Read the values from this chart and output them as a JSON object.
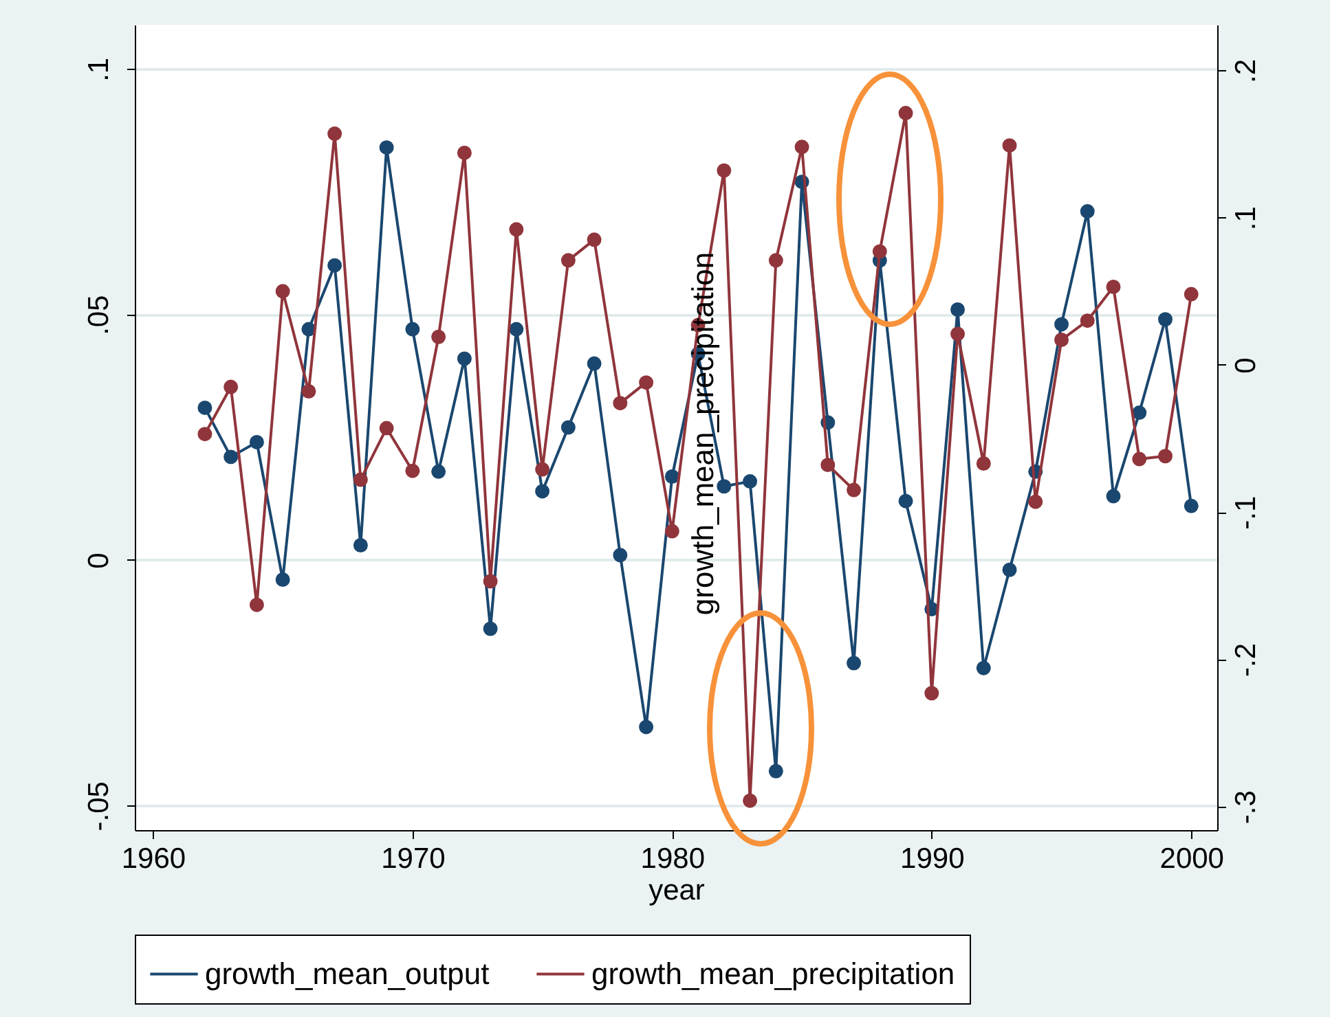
{
  "chart_data": {
    "type": "line",
    "xlabel": "year",
    "y2label": "growth_mean_precipitation",
    "x": [
      1962,
      1963,
      1964,
      1965,
      1966,
      1967,
      1968,
      1969,
      1970,
      1971,
      1972,
      1973,
      1974,
      1975,
      1976,
      1977,
      1978,
      1979,
      1980,
      1981,
      1982,
      1983,
      1984,
      1985,
      1986,
      1987,
      1988,
      1989,
      1990,
      1991,
      1992,
      1993,
      1994,
      1995,
      1996,
      1997,
      1998,
      1999,
      2000
    ],
    "series": [
      {
        "name": "growth_mean_output",
        "color": "#1a476f",
        "values": [
          0.031,
          0.021,
          0.024,
          -0.004,
          0.047,
          0.06,
          0.003,
          0.084,
          0.047,
          0.018,
          0.041,
          -0.014,
          0.047,
          0.014,
          0.027,
          0.04,
          0.001,
          -0.034,
          0.017,
          0.042,
          0.015,
          0.016,
          -0.043,
          0.077,
          0.028,
          -0.021,
          0.061,
          0.012,
          -0.01,
          0.051,
          -0.022,
          -0.002,
          0.018,
          0.048,
          0.071,
          0.013,
          0.03,
          0.049,
          0.011
        ]
      },
      {
        "name": "growth_mean_precipitation",
        "color": "#90353b",
        "axis": "y2",
        "values": [
          -0.047,
          -0.015,
          -0.163,
          0.05,
          -0.018,
          0.157,
          -0.078,
          -0.043,
          -0.072,
          0.019,
          0.144,
          -0.147,
          0.092,
          -0.071,
          0.071,
          0.085,
          -0.026,
          -0.012,
          -0.113,
          0.027,
          0.132,
          -0.296,
          0.071,
          0.148,
          -0.068,
          -0.085,
          0.077,
          0.171,
          -0.223,
          0.021,
          -0.067,
          0.149,
          -0.093,
          0.017,
          0.03,
          0.053,
          -0.064,
          -0.062,
          0.048
        ]
      }
    ],
    "xlim": [
      1959.3,
      2001
    ],
    "xticks": [
      1960,
      1970,
      1980,
      1990,
      2000
    ],
    "ylim": [
      -0.055,
      0.109
    ],
    "yticks": [
      {
        "value": -0.05,
        "label": "-.05"
      },
      0,
      {
        "value": 0.05,
        "label": ".05"
      },
      {
        "value": 0.1,
        "label": ".1"
      }
    ],
    "y2lim": [
      -0.316,
      0.231
    ],
    "y2ticks": [
      {
        "value": -0.3,
        "label": "-.3"
      },
      {
        "value": -0.2,
        "label": "-.2"
      },
      {
        "value": -0.1,
        "label": "-.1"
      },
      0,
      {
        "value": 0.1,
        "label": ".1"
      },
      {
        "value": 0.2,
        "label": ".2"
      }
    ],
    "grid": "y",
    "legend": "bottom",
    "marker": "circle",
    "line_style": "solid"
  }
}
